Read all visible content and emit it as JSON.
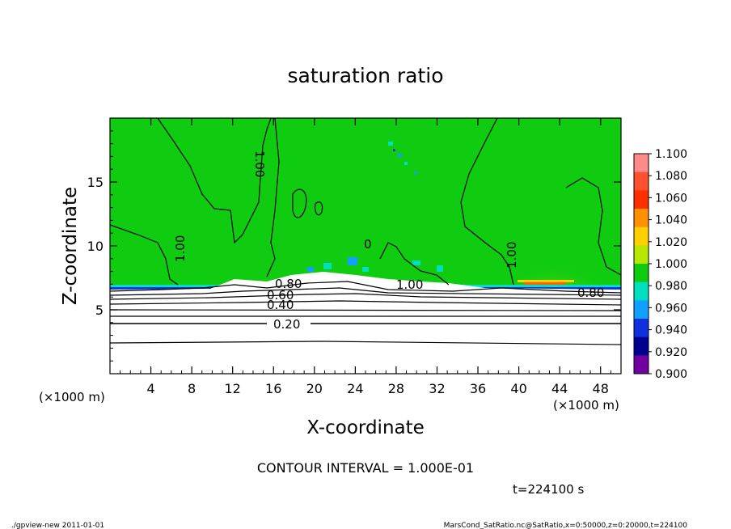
{
  "chart_data": {
    "type": "heatmap",
    "title": "saturation ratio",
    "xlabel": "X-coordinate",
    "ylabel": "Z-coordinate",
    "x_unit": "(×1000 m)",
    "y_unit": "(×1000 m)",
    "xlim": [
      0,
      50
    ],
    "ylim": [
      0,
      20
    ],
    "x_ticks": [
      "4",
      "8",
      "12",
      "16",
      "20",
      "24",
      "28",
      "32",
      "36",
      "40",
      "44",
      "48"
    ],
    "y_ticks": [
      "5",
      "10",
      "15"
    ],
    "colorbar": {
      "levels": [
        "1.100",
        "1.080",
        "1.060",
        "1.040",
        "1.020",
        "1.000",
        "0.980",
        "0.960",
        "0.940",
        "0.920",
        "0.900"
      ],
      "colors": [
        "#ff8a8a",
        "#ff5030",
        "#ff3000",
        "#ff9000",
        "#ffd000",
        "#b8e800",
        "#10cc10",
        "#00e0c0",
        "#10a0ff",
        "#1030e0",
        "#000090",
        "#7000a0"
      ]
    },
    "contour_labels": [
      "1.00",
      "1.00",
      "1.00",
      "1.00",
      "0",
      "0.80",
      "0.80",
      "0.60",
      "0.40",
      "0.20"
    ],
    "contour_interval_text": "CONTOUR INTERVAL = 1.000E-01",
    "time_text": "t=224100 s"
  },
  "footer": {
    "left": "./gpview-new  2011-01-01",
    "right": "MarsCond_SatRatio.nc@SatRatio,x=0:50000,z=0:20000,t=224100"
  }
}
